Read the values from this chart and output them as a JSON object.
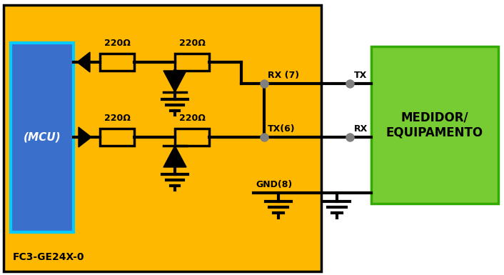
{
  "bg_color": "#FFB800",
  "mcu_color": "#3B6FCC",
  "medidor_color": "#77CC33",
  "line_color": "#000000",
  "dot_color": "#808080",
  "text_color": "#000000",
  "fig_bg": "#FFFFFF",
  "mcu_label": "(MCU)",
  "medidor_label": "MEDIDOR/\nEQUIPAMENTO",
  "bottom_label": "FC3-GE24X-0",
  "rx7_label": "RX (7)",
  "tx6_label": "TX(6)",
  "gnd8_label": "GND(8)",
  "tx_label": "TX",
  "rx_label": "RX"
}
